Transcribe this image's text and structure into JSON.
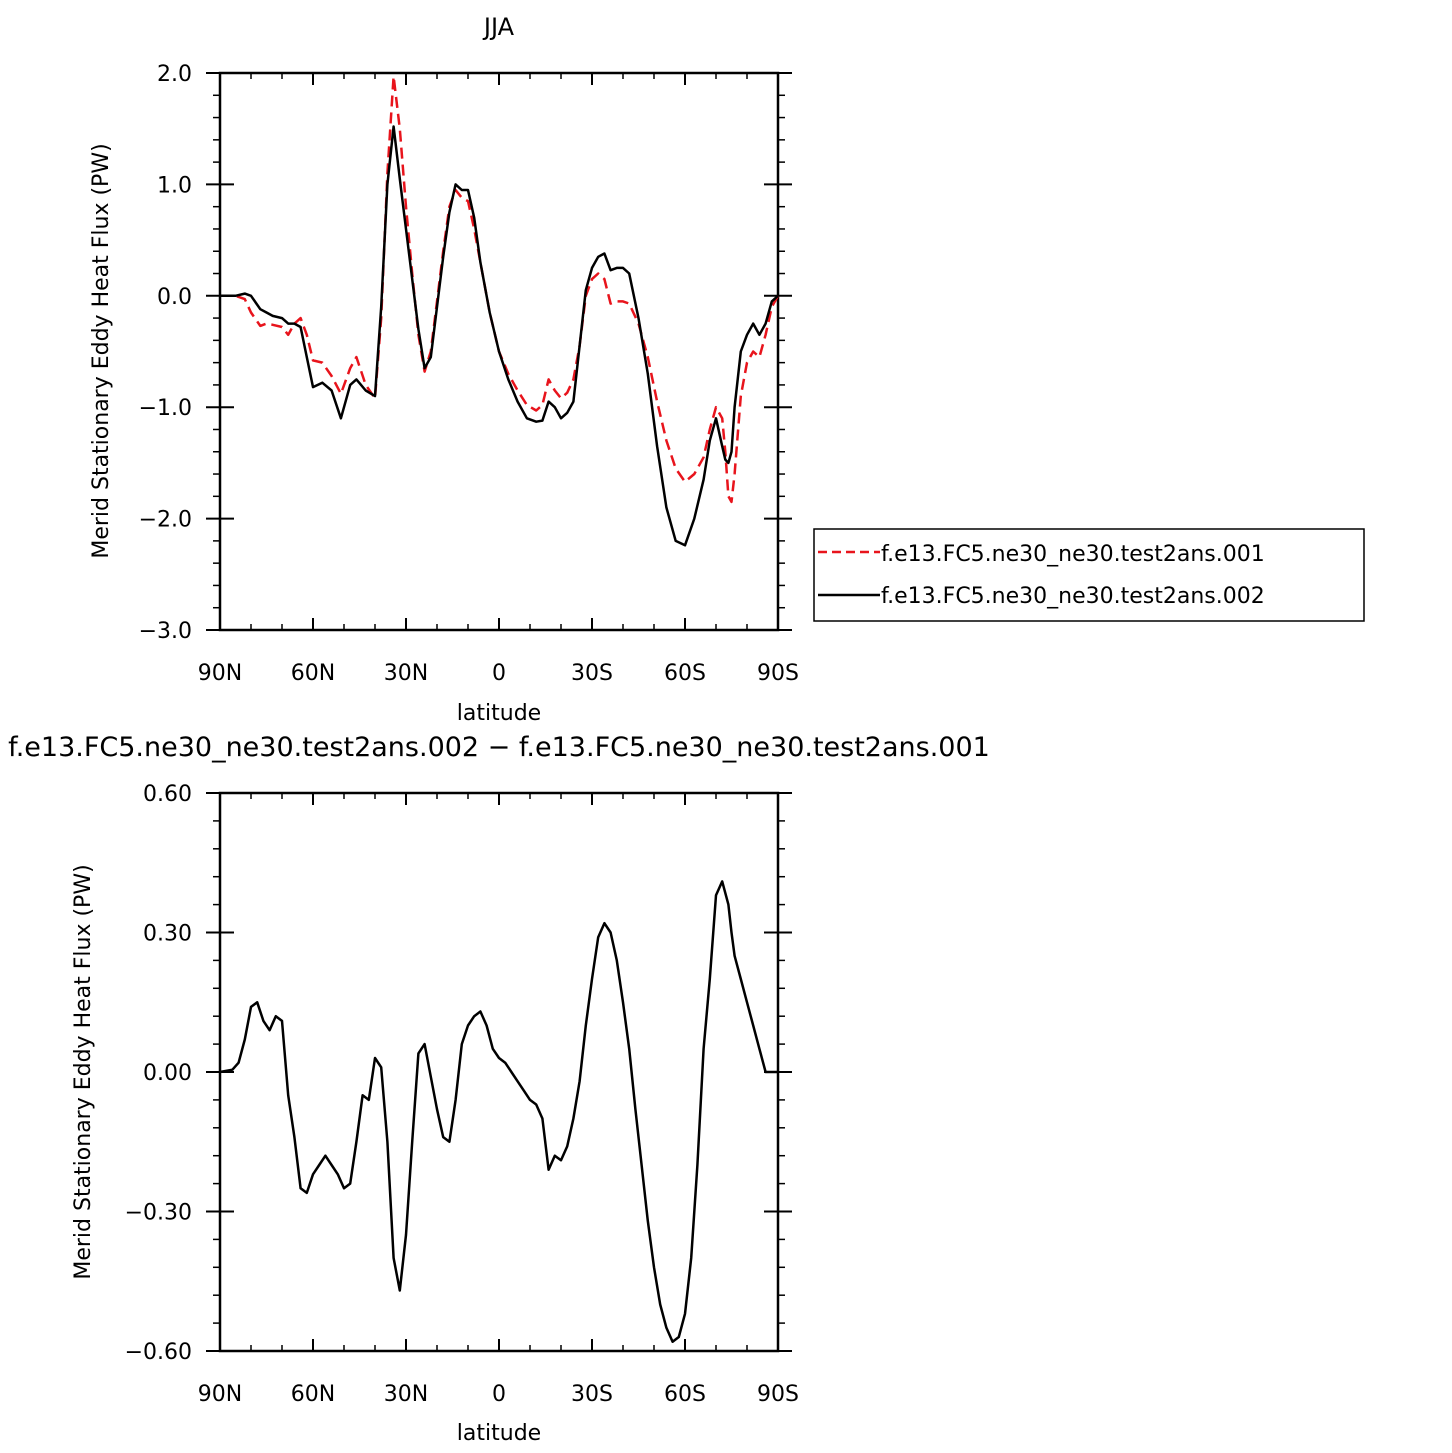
{
  "chart_data": [
    {
      "type": "line",
      "title": "JJA",
      "xlabel": "latitude",
      "ylabel": "Merid Stationary Eddy Heat Flux (PW)",
      "xlim": [
        -90,
        90
      ],
      "ylim": [
        -3.0,
        2.0
      ],
      "x_ticks": [
        -90,
        -60,
        -30,
        0,
        30,
        60,
        90
      ],
      "x_tick_labels": [
        "90N",
        "60N",
        "30N",
        "0",
        "30S",
        "60S",
        "90S"
      ],
      "y_ticks": [
        -3.0,
        -2.0,
        -1.0,
        0.0,
        1.0,
        2.0
      ],
      "y_tick_labels": [
        "−3.0",
        "−2.0",
        "−1.0",
        "0.0",
        "1.0",
        "2.0"
      ],
      "grid": false,
      "legend_position": "right",
      "series": [
        {
          "name": "f.e13.FC5.ne30_ne30.test2ans.001",
          "color": "#e8141c",
          "dash": "dashed",
          "x": [
            -90,
            -85,
            -82,
            -80,
            -77,
            -75,
            -73,
            -70,
            -68,
            -66,
            -64,
            -62,
            -60,
            -57,
            -54,
            -51,
            -48,
            -46,
            -43,
            -40,
            -38,
            -36,
            -34,
            -32,
            -30,
            -28,
            -26,
            -24,
            -22,
            -20,
            -18,
            -16,
            -14,
            -12,
            -10,
            -8,
            -6,
            -3,
            0,
            3,
            6,
            9,
            12,
            14,
            16,
            18,
            20,
            22,
            24,
            26,
            28,
            30,
            32,
            34,
            36,
            38,
            40,
            42,
            45,
            48,
            51,
            54,
            57,
            60,
            63,
            66,
            68,
            70,
            72,
            73,
            74,
            75,
            76,
            78,
            80,
            82,
            84,
            86,
            88,
            90
          ],
          "y": [
            0.0,
            0.0,
            -0.03,
            -0.15,
            -0.27,
            -0.25,
            -0.26,
            -0.28,
            -0.35,
            -0.25,
            -0.2,
            -0.35,
            -0.58,
            -0.6,
            -0.72,
            -0.88,
            -0.65,
            -0.55,
            -0.8,
            -0.92,
            -0.2,
            1.1,
            1.97,
            1.5,
            0.8,
            0.2,
            -0.35,
            -0.68,
            -0.5,
            -0.05,
            0.4,
            0.8,
            0.95,
            0.88,
            0.85,
            0.6,
            0.3,
            -0.15,
            -0.5,
            -0.7,
            -0.85,
            -0.98,
            -1.03,
            -0.98,
            -0.75,
            -0.85,
            -0.92,
            -0.87,
            -0.75,
            -0.45,
            0.0,
            0.15,
            0.2,
            0.15,
            -0.07,
            -0.05,
            -0.05,
            -0.07,
            -0.25,
            -0.55,
            -0.95,
            -1.3,
            -1.55,
            -1.67,
            -1.6,
            -1.45,
            -1.2,
            -1.0,
            -1.1,
            -1.4,
            -1.8,
            -1.85,
            -1.6,
            -0.9,
            -0.6,
            -0.5,
            -0.55,
            -0.35,
            -0.1,
            0.0
          ]
        },
        {
          "name": "f.e13.FC5.ne30_ne30.test2ans.002",
          "color": "#000000",
          "dash": "solid",
          "x": [
            -90,
            -85,
            -82,
            -80,
            -77,
            -75,
            -73,
            -70,
            -68,
            -66,
            -64,
            -62,
            -60,
            -57,
            -54,
            -51,
            -48,
            -46,
            -43,
            -40,
            -38,
            -36,
            -34,
            -32,
            -30,
            -28,
            -26,
            -24,
            -22,
            -20,
            -18,
            -16,
            -14,
            -12,
            -10,
            -8,
            -6,
            -3,
            0,
            3,
            6,
            9,
            12,
            14,
            16,
            18,
            20,
            22,
            24,
            26,
            28,
            30,
            32,
            34,
            36,
            38,
            40,
            42,
            45,
            48,
            51,
            54,
            57,
            60,
            63,
            66,
            68,
            70,
            72,
            73,
            74,
            75,
            76,
            78,
            80,
            82,
            84,
            86,
            88,
            90
          ],
          "y": [
            0.0,
            0.0,
            0.02,
            0.0,
            -0.12,
            -0.15,
            -0.18,
            -0.2,
            -0.25,
            -0.25,
            -0.28,
            -0.55,
            -0.82,
            -0.78,
            -0.85,
            -1.1,
            -0.8,
            -0.75,
            -0.85,
            -0.9,
            -0.1,
            1.0,
            1.52,
            1.05,
            0.6,
            0.15,
            -0.3,
            -0.65,
            -0.55,
            -0.1,
            0.35,
            0.75,
            1.0,
            0.95,
            0.95,
            0.7,
            0.3,
            -0.15,
            -0.5,
            -0.75,
            -0.95,
            -1.1,
            -1.13,
            -1.12,
            -0.95,
            -1.0,
            -1.1,
            -1.05,
            -0.95,
            -0.45,
            0.05,
            0.25,
            0.35,
            0.38,
            0.23,
            0.25,
            0.25,
            0.2,
            -0.2,
            -0.7,
            -1.35,
            -1.9,
            -2.2,
            -2.24,
            -2.0,
            -1.65,
            -1.3,
            -1.1,
            -1.35,
            -1.47,
            -1.5,
            -1.4,
            -1.0,
            -0.5,
            -0.35,
            -0.25,
            -0.35,
            -0.25,
            -0.05,
            0.0
          ]
        }
      ]
    },
    {
      "type": "line",
      "title": "f.e13.FC5.ne30_ne30.test2ans.002 − f.e13.FC5.ne30_ne30.test2ans.001",
      "xlabel": "latitude",
      "ylabel": "Merid Stationary Eddy Heat Flux (PW)",
      "xlim": [
        -90,
        90
      ],
      "ylim": [
        -0.6,
        0.6
      ],
      "x_ticks": [
        -90,
        -60,
        -30,
        0,
        30,
        60,
        90
      ],
      "x_tick_labels": [
        "90N",
        "60N",
        "30N",
        "0",
        "30S",
        "60S",
        "90S"
      ],
      "y_ticks": [
        -0.6,
        -0.3,
        0.0,
        0.3,
        0.6
      ],
      "y_tick_labels": [
        "−0.60",
        "−0.30",
        "0.00",
        "0.30",
        "0.60"
      ],
      "grid": false,
      "series": [
        {
          "color": "#000000",
          "dash": "solid",
          "x": [
            -90,
            -86,
            -84,
            -82,
            -80,
            -78,
            -76,
            -74,
            -72,
            -70,
            -68,
            -66,
            -64,
            -62,
            -60,
            -58,
            -56,
            -54,
            -52,
            -50,
            -48,
            -46,
            -44,
            -42,
            -40,
            -38,
            -36,
            -34,
            -32,
            -30,
            -28,
            -26,
            -24,
            -22,
            -20,
            -18,
            -16,
            -14,
            -12,
            -10,
            -8,
            -6,
            -4,
            -2,
            0,
            2,
            4,
            6,
            8,
            10,
            12,
            14,
            16,
            18,
            20,
            22,
            24,
            26,
            28,
            30,
            32,
            34,
            36,
            38,
            40,
            42,
            44,
            46,
            48,
            50,
            52,
            54,
            56,
            58,
            60,
            62,
            64,
            66,
            68,
            70,
            72,
            74,
            75,
            76,
            78,
            80,
            82,
            84,
            86,
            88,
            90
          ],
          "y": [
            0.0,
            0.005,
            0.02,
            0.07,
            0.14,
            0.15,
            0.11,
            0.09,
            0.12,
            0.11,
            -0.05,
            -0.14,
            -0.25,
            -0.26,
            -0.22,
            -0.2,
            -0.18,
            -0.2,
            -0.22,
            -0.25,
            -0.24,
            -0.15,
            -0.05,
            -0.06,
            0.03,
            0.01,
            -0.15,
            -0.4,
            -0.47,
            -0.35,
            -0.15,
            0.04,
            0.06,
            -0.01,
            -0.08,
            -0.14,
            -0.15,
            -0.06,
            0.06,
            0.1,
            0.12,
            0.13,
            0.1,
            0.05,
            0.03,
            0.02,
            0.0,
            -0.02,
            -0.04,
            -0.06,
            -0.07,
            -0.1,
            -0.21,
            -0.18,
            -0.19,
            -0.16,
            -0.1,
            -0.02,
            0.1,
            0.2,
            0.29,
            0.32,
            0.3,
            0.24,
            0.15,
            0.05,
            -0.08,
            -0.2,
            -0.32,
            -0.42,
            -0.5,
            -0.55,
            -0.58,
            -0.57,
            -0.52,
            -0.4,
            -0.2,
            0.05,
            0.2,
            0.38,
            0.41,
            0.36,
            0.3,
            0.25,
            0.2,
            0.15,
            0.1,
            0.05,
            0.0,
            0.0,
            0.0
          ]
        }
      ]
    }
  ]
}
